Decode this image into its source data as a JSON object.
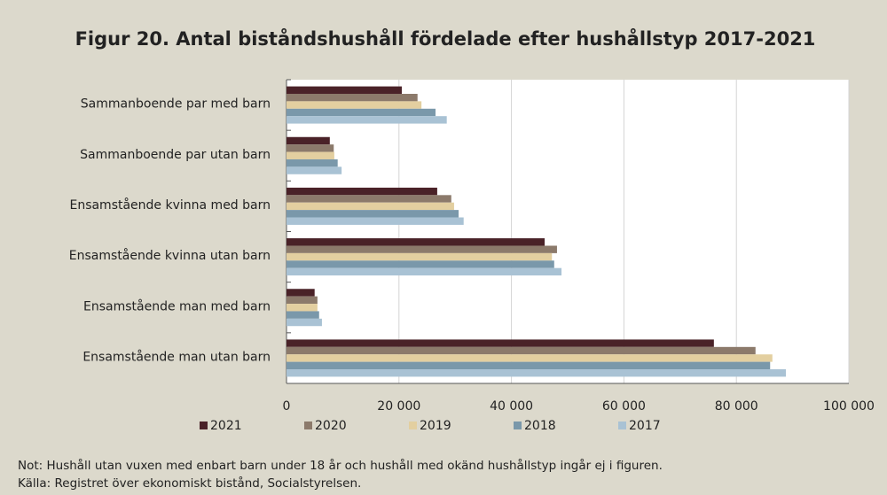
{
  "chart_data": {
    "type": "barh",
    "title": "Figur 20. Antal biståndshushåll fördelade efter hushållstyp 2017-2021",
    "categories": [
      "Sammanboende par med barn",
      "Sammanboende par utan barn",
      "Ensamstående kvinna med barn",
      "Ensamstående kvinna utan barn",
      "Ensamstående man med barn",
      "Ensamstående man utan barn"
    ],
    "series": [
      {
        "name": "2021",
        "color": "#4a2228",
        "values": [
          20500,
          7700,
          26800,
          45900,
          5000,
          76000
        ]
      },
      {
        "name": "2020",
        "color": "#8c7a6b",
        "values": [
          23300,
          8400,
          29300,
          48100,
          5500,
          83400
        ]
      },
      {
        "name": "2019",
        "color": "#e3cfa0",
        "values": [
          24000,
          8500,
          29800,
          47200,
          5500,
          86400
        ]
      },
      {
        "name": "2018",
        "color": "#7a98aa",
        "values": [
          26500,
          9100,
          30600,
          47600,
          5800,
          86000
        ]
      },
      {
        "name": "2017",
        "color": "#a9c2d4",
        "values": [
          28500,
          9800,
          31500,
          48900,
          6300,
          88800
        ]
      }
    ],
    "xlim": [
      0,
      100000
    ],
    "xticks": [
      0,
      {
        "value": 20000,
        "label": "20 000"
      },
      {
        "value": 40000,
        "label": "40 000"
      },
      {
        "value": 60000,
        "label": "60 000"
      },
      {
        "value": 80000,
        "label": "80 000"
      },
      {
        "value": 100000,
        "label": "100 000"
      }
    ],
    "grid": true,
    "legend": "bottom",
    "notes": [
      "Not: Hushåll utan vuxen med enbart barn under 18 år och hushåll med okänd hushållstyp ingår ej i figuren.",
      "Källa: Registret över ekonomiskt bistånd, Socialstyrelsen."
    ]
  }
}
